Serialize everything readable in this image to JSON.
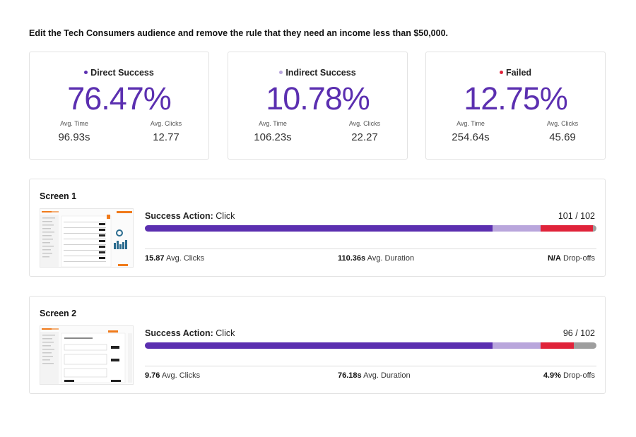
{
  "task": "Edit the Tech Consumers audience and remove the rule that they need an income less than $50,000.",
  "stats": [
    {
      "label": "Direct Success",
      "dot_color": "#5b2fb0",
      "percent": "76.47%",
      "avg_time_label": "Avg. Time",
      "avg_time": "96.93s",
      "avg_clicks_label": "Avg. Clicks",
      "avg_clicks": "12.77"
    },
    {
      "label": "Indirect Success",
      "dot_color": "#b9a6dc",
      "percent": "10.78%",
      "avg_time_label": "Avg. Time",
      "avg_time": "106.23s",
      "avg_clicks_label": "Avg. Clicks",
      "avg_clicks": "22.27"
    },
    {
      "label": "Failed",
      "dot_color": "#e0233a",
      "percent": "12.75%",
      "avg_time_label": "Avg. Time",
      "avg_time": "254.64s",
      "avg_clicks_label": "Avg. Clicks",
      "avg_clicks": "45.69"
    }
  ],
  "colors": {
    "direct": "#5b2fb0",
    "indirect": "#b9a6dc",
    "failed": "#e0233a",
    "dropoff": "#9e9e9e",
    "accent": "#f07a1a"
  },
  "screens": [
    {
      "title": "Screen 1",
      "success_prefix": "Success Action:",
      "success_action": "Click",
      "count": "101 / 102",
      "bar": {
        "direct": 0.77,
        "indirect": 0.107,
        "failed": 0.115,
        "dropoff": 0.008
      },
      "avg_clicks_value": "15.87",
      "avg_clicks_label": "Avg. Clicks",
      "avg_duration_value": "110.36s",
      "avg_duration_label": "Avg. Duration",
      "dropoffs_value": "N/A",
      "dropoffs_label": "Drop-offs"
    },
    {
      "title": "Screen 2",
      "success_prefix": "Success Action:",
      "success_action": "Click",
      "count": "96 / 102",
      "bar": {
        "direct": 0.77,
        "indirect": 0.107,
        "failed": 0.073,
        "dropoff": 0.05
      },
      "avg_clicks_value": "9.76",
      "avg_clicks_label": "Avg. Clicks",
      "avg_duration_value": "76.18s",
      "avg_duration_label": "Avg. Duration",
      "dropoffs_value": "4.9%",
      "dropoffs_label": "Drop-offs"
    }
  ]
}
